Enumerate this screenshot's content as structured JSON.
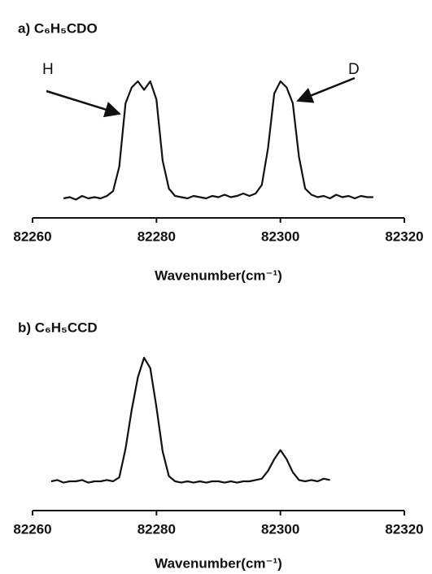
{
  "chart_data": [
    {
      "type": "line",
      "title": "a) C₆H₅CDO",
      "xlabel": "Wavenumber(cm⁻¹)",
      "xlim": [
        82260,
        82320
      ],
      "xticks": [
        82260,
        82280,
        82300,
        82320
      ],
      "annotations": [
        "H",
        "D"
      ],
      "color": "#111111",
      "x": [
        82265,
        82266,
        82267,
        82268,
        82269,
        82270,
        82271,
        82272,
        82273,
        82274,
        82275,
        82276,
        82277,
        82278,
        82279,
        82280,
        82281,
        82282,
        82283,
        82284,
        82285,
        82286,
        82287,
        82288,
        82289,
        82290,
        82291,
        82292,
        82293,
        82294,
        82295,
        82296,
        82297,
        82298,
        82299,
        82300,
        82301,
        82302,
        82303,
        82304,
        82305,
        82306,
        82307,
        82308,
        82309,
        82310,
        82311,
        82312,
        82313,
        82314,
        82315
      ],
      "values": [
        0.04,
        0.05,
        0.03,
        0.06,
        0.04,
        0.05,
        0.04,
        0.06,
        0.1,
        0.3,
        0.82,
        0.95,
        1.0,
        0.93,
        1.0,
        0.85,
        0.35,
        0.12,
        0.06,
        0.05,
        0.04,
        0.06,
        0.05,
        0.04,
        0.06,
        0.05,
        0.07,
        0.05,
        0.06,
        0.08,
        0.06,
        0.08,
        0.15,
        0.45,
        0.9,
        1.0,
        0.95,
        0.82,
        0.38,
        0.12,
        0.07,
        0.05,
        0.06,
        0.04,
        0.07,
        0.05,
        0.06,
        0.04,
        0.06,
        0.05,
        0.05
      ]
    },
    {
      "type": "line",
      "title": "b) C₆H₅CCD",
      "xlabel": "Wavenumber(cm⁻¹)",
      "xlim": [
        82260,
        82320
      ],
      "xticks": [
        82260,
        82280,
        82300,
        82320
      ],
      "color": "#111111",
      "x": [
        82263,
        82264,
        82265,
        82266,
        82267,
        82268,
        82269,
        82270,
        82271,
        82272,
        82273,
        82274,
        82275,
        82276,
        82277,
        82278,
        82279,
        82280,
        82281,
        82282,
        82283,
        82284,
        82285,
        82286,
        82287,
        82288,
        82289,
        82290,
        82291,
        82292,
        82293,
        82294,
        82295,
        82296,
        82297,
        82298,
        82299,
        82300,
        82301,
        82302,
        82303,
        82304,
        82305,
        82306,
        82307,
        82308
      ],
      "values": [
        0.05,
        0.06,
        0.04,
        0.05,
        0.05,
        0.06,
        0.04,
        0.05,
        0.05,
        0.06,
        0.05,
        0.08,
        0.3,
        0.6,
        0.85,
        1.0,
        0.92,
        0.62,
        0.28,
        0.09,
        0.05,
        0.04,
        0.05,
        0.04,
        0.05,
        0.04,
        0.05,
        0.05,
        0.04,
        0.05,
        0.04,
        0.05,
        0.05,
        0.06,
        0.07,
        0.13,
        0.22,
        0.29,
        0.22,
        0.12,
        0.06,
        0.05,
        0.06,
        0.05,
        0.07,
        0.06
      ]
    }
  ]
}
